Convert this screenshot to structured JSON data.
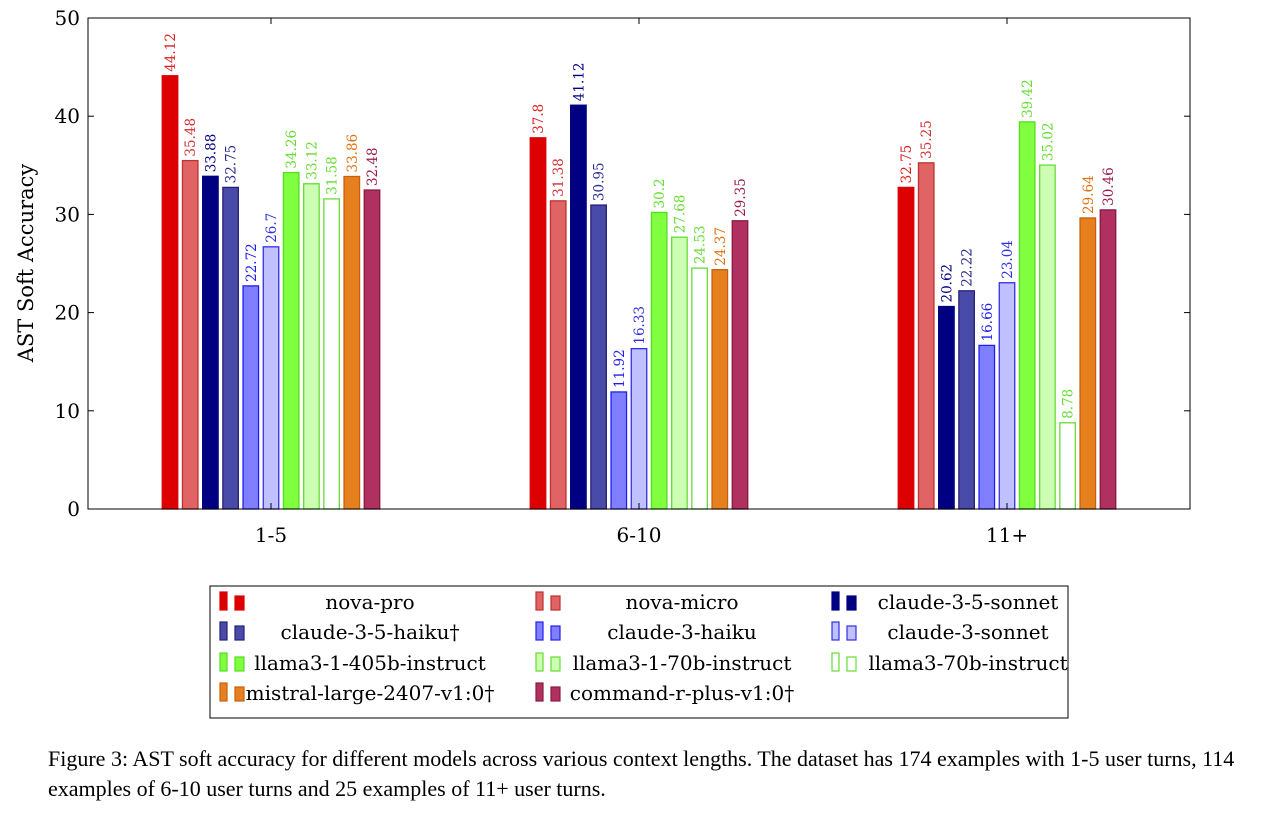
{
  "chart_data": {
    "type": "bar",
    "title": "",
    "xlabel": "",
    "ylabel": "AST Soft Accuracy",
    "ylim": [
      0,
      50
    ],
    "yticks": [
      0,
      10,
      20,
      30,
      40,
      50
    ],
    "categories": [
      "1-5",
      "6-10",
      "11+"
    ],
    "value_labels": [
      [
        "44.12",
        "35.48",
        "33.88",
        "32.75",
        "22.72",
        "26.7",
        "34.26",
        "33.12",
        "31.58",
        "33.86",
        "32.48"
      ],
      [
        "37.8",
        "31.38",
        "41.12",
        "30.95",
        "11.92",
        "16.33",
        "30.2",
        "27.68",
        "24.53",
        "24.37",
        "29.35"
      ],
      [
        "32.75",
        "35.25",
        "20.62",
        "22.22",
        "16.66",
        "23.04",
        "39.42",
        "35.02",
        "8.78",
        "29.64",
        "30.46"
      ]
    ],
    "series": [
      {
        "name": "nova-pro",
        "fill": "#dd0000",
        "stroke": "#dd0000",
        "label_color": "#dd2020",
        "values": [
          44.12,
          37.8,
          32.75
        ]
      },
      {
        "name": "nova-micro",
        "fill": "#e06464",
        "stroke": "#c03030",
        "label_color": "#d03030",
        "values": [
          35.48,
          31.38,
          35.25
        ]
      },
      {
        "name": "claude-3-5-sonnet",
        "fill": "#000080",
        "stroke": "#000080",
        "label_color": "#000080",
        "values": [
          33.88,
          41.12,
          20.62
        ]
      },
      {
        "name": "claude-3-5-haiku†",
        "fill": "#4a4aa8",
        "stroke": "#22227a",
        "label_color": "#2a2a90",
        "values": [
          32.75,
          30.95,
          22.22
        ]
      },
      {
        "name": "claude-3-haiku",
        "fill": "#7f7fff",
        "stroke": "#2020ee",
        "label_color": "#2020ee",
        "values": [
          22.72,
          11.92,
          16.66
        ]
      },
      {
        "name": "claude-3-sonnet",
        "fill": "#c0c0ff",
        "stroke": "#3030e0",
        "label_color": "#3030e0",
        "values": [
          26.7,
          16.33,
          23.04
        ]
      },
      {
        "name": "llama3-1-405b-instruct",
        "fill": "#80ff40",
        "stroke": "#55dd20",
        "label_color": "#66dd33",
        "values": [
          34.26,
          30.2,
          39.42
        ]
      },
      {
        "name": "llama3-1-70b-instruct",
        "fill": "#ccffb3",
        "stroke": "#66dd33",
        "label_color": "#66dd33",
        "values": [
          33.12,
          27.68,
          35.02
        ]
      },
      {
        "name": "llama3-70b-instruct",
        "fill": "#ffffff",
        "stroke": "#66dd33",
        "label_color": "#66dd33",
        "values": [
          31.58,
          24.53,
          8.78
        ]
      },
      {
        "name": "mistral-large-2407-v1:0†",
        "fill": "#e6801f",
        "stroke": "#c86010",
        "label_color": "#e07010",
        "values": [
          33.86,
          24.37,
          29.64
        ]
      },
      {
        "name": "command-r-plus-v1:0†",
        "fill": "#b03060",
        "stroke": "#8a1a44",
        "label_color": "#9a1a4a",
        "values": [
          32.48,
          29.35,
          30.46
        ]
      }
    ],
    "legend_position": "below"
  },
  "caption": "Figure 3: AST soft accuracy for different models across various context lengths. The dataset has 174 examples with 1-5 user turns, 114 examples of 6-10 user turns and 25 examples of 11+ user turns."
}
